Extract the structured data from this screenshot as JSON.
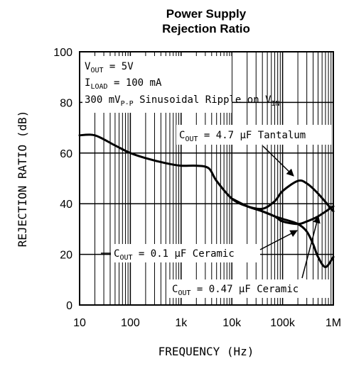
{
  "chart_data": {
    "type": "line",
    "title_lines": [
      "Power Supply",
      "Rejection Ratio"
    ],
    "xlabel": "FREQUENCY (Hz)",
    "ylabel": "REJECTION RATIO (dB)",
    "x_scale": "log",
    "xlim": [
      10,
      1000000
    ],
    "ylim": [
      0,
      100
    ],
    "x_tick_labels": [
      "10",
      "100",
      "1k",
      "10k",
      "100k",
      "1M"
    ],
    "y_ticks": [
      0,
      20,
      40,
      60,
      80,
      100
    ],
    "grid": true,
    "conditions": [
      {
        "main": "V",
        "sub": "OUT",
        "rest": " = 5V"
      },
      {
        "main": "I",
        "sub": "LOAD",
        "rest": " = 100 mA"
      },
      {
        "main": "300 mV",
        "sub": "P-P",
        "rest": " Sinusoidal Ripple on V",
        "sub2": "IN"
      }
    ],
    "series": [
      {
        "name": "COUT = 4.7 µF Tantalum",
        "label": {
          "main": "C",
          "sub": "OUT",
          "rest": " = 4.7 µF Tantalum"
        },
        "x": [
          10,
          20,
          50,
          100,
          200,
          500,
          1000,
          2000,
          3500,
          5000,
          10000,
          20000,
          40000,
          70000,
          100000,
          200000,
          300000,
          500000,
          1000000
        ],
        "y": [
          67,
          67,
          63,
          60,
          58,
          56,
          55,
          55,
          54,
          49,
          42,
          39,
          38,
          41,
          45,
          49,
          48,
          44,
          37
        ]
      },
      {
        "name": "COUT = 0.1 µF Ceramic",
        "label": {
          "main": "C",
          "sub": "OUT",
          "rest": " = 0.1 µF Ceramic"
        },
        "x": [
          10000,
          20000,
          40000,
          70000,
          100000,
          200000,
          300000,
          500000,
          1000000
        ],
        "y": [
          42,
          39,
          37,
          35,
          33,
          32,
          33,
          35,
          39
        ]
      },
      {
        "name": "COUT = 0.47 µF Ceramic",
        "label": {
          "main": "C",
          "sub": "OUT",
          "rest": " = 0.47 µF Ceramic"
        },
        "x": [
          10000,
          20000,
          40000,
          70000,
          100000,
          200000,
          300000,
          400000,
          500000,
          700000,
          1000000
        ],
        "y": [
          42,
          39,
          37,
          35,
          34,
          32,
          29,
          24,
          19,
          15,
          19
        ]
      }
    ]
  }
}
